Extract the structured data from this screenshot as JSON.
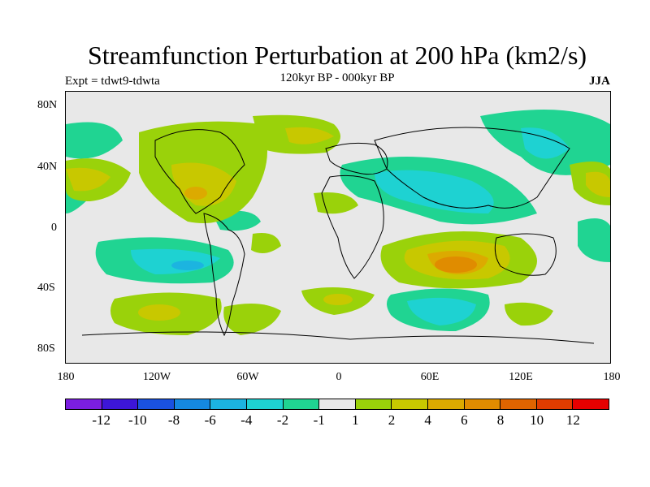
{
  "title": "Streamfunction Perturbation at 200 hPa (km2/s)",
  "subtitle": "120kyr BP - 000kyr BP",
  "left_label": "Expt = tdwt9-tdwta",
  "right_label": "JJA",
  "map": {
    "projection": "cylindrical equidistant",
    "x_ticks": [
      "180",
      "120W",
      "60W",
      "0",
      "60E",
      "120E",
      "180"
    ],
    "y_ticks": [
      "80N",
      "40N",
      "0",
      "40S",
      "80S"
    ],
    "background_color": "#e8e8e8"
  },
  "colorbar": {
    "colors": [
      "#7b1ee0",
      "#3d16d8",
      "#1a52e0",
      "#1588e0",
      "#1cb4e0",
      "#1ed2d2",
      "#20d492",
      "#e8e8e8",
      "#9ad20a",
      "#c8c800",
      "#dcaa00",
      "#e08c00",
      "#e06400",
      "#e03c00",
      "#e60000"
    ],
    "labels": [
      "-12",
      "-10",
      "-8",
      "-6",
      "-4",
      "-2",
      "-1",
      "1",
      "2",
      "4",
      "6",
      "8",
      "10",
      "12"
    ]
  }
}
